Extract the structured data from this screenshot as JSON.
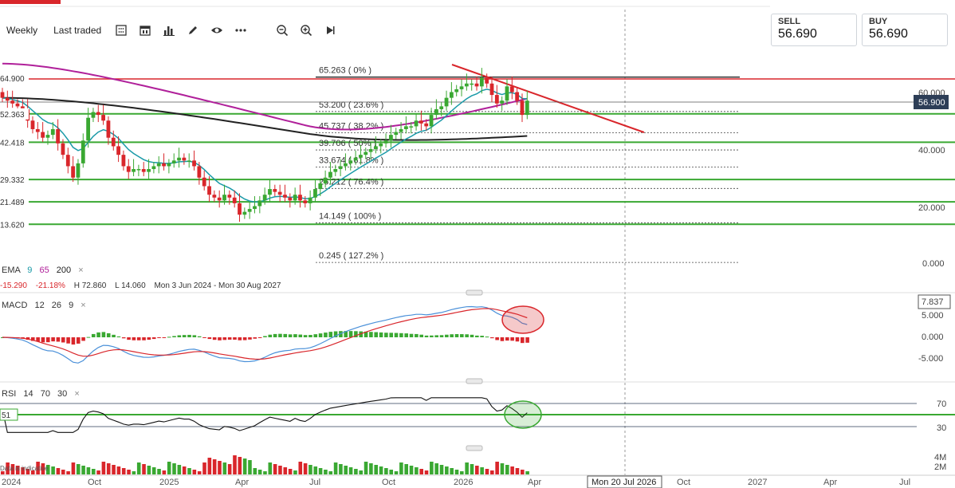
{
  "toolbar": {
    "interval": "Weekly",
    "price_mode": "Last traded",
    "icons": [
      "calculator-icon",
      "calendar-icon",
      "bar-chart-icon",
      "pencil-icon",
      "eye-icon",
      "more-icon",
      "zoom-out-icon",
      "zoom-in-icon",
      "play-icon"
    ]
  },
  "prices": {
    "sell_label": "SELL",
    "sell_value": "56.690",
    "buy_label": "BUY",
    "buy_value": "56.690"
  },
  "y_axis": {
    "labels": [
      "60.000",
      "40.000",
      "20.000",
      "0.000"
    ],
    "current": "56.900"
  },
  "left_levels": [
    "64.900",
    "52.363",
    "42.418",
    "29.332",
    "21.489",
    "13.620"
  ],
  "fib_levels": [
    {
      "text": "65.263 ( 0% )"
    },
    {
      "text": "53.200 ( 23.6% )"
    },
    {
      "text": "45.737 ( 38.2% )"
    },
    {
      "text": "39.706 ( 50% )"
    },
    {
      "text": "33.674 ( 61.8% )"
    },
    {
      "text": "26.212 ( 76.4% )"
    },
    {
      "text": "14.149 ( 100% )"
    },
    {
      "text": "0.245 ( 127.2% )"
    }
  ],
  "ema": {
    "name": "EMA",
    "p1": "9",
    "p2": "65",
    "p3": "200",
    "close": "×"
  },
  "stats": {
    "change": "-15.290",
    "pct": "-21.18%",
    "high": "H 72.860",
    "low": "L 14.060",
    "range": "Mon 3 Jun 2024 - Mon 30 Aug 2027"
  },
  "macd": {
    "name": "MACD",
    "p1": "12",
    "p2": "26",
    "p3": "9",
    "close": "×",
    "labels": [
      "7.837",
      "5.000",
      "0.000",
      "-5.000"
    ]
  },
  "rsi": {
    "name": "RSI",
    "p1": "14",
    "p2": "70",
    "p3": "30",
    "close": "×",
    "labels": [
      "70",
      "50",
      "30"
    ],
    "left_value": "51"
  },
  "volume": {
    "labels": [
      "4M",
      "2M"
    ],
    "note": "Data is indicative"
  },
  "x_axis": {
    "labels": [
      "2024",
      "Oct",
      "2025",
      "Apr",
      "Jul",
      "Oct",
      "2026",
      "Apr",
      "Mon 20 Jul 2026",
      "Oct",
      "2027",
      "Apr",
      "Jul"
    ]
  },
  "colors": {
    "up": "#3aa832",
    "down": "#d9262b",
    "ema9": "#1a9aa8",
    "ema65": "#b0209a",
    "ema200": "#222222",
    "level": "#3aa832",
    "accent": "#d9262b"
  },
  "chart_data": {
    "type": "candlestick",
    "interval": "weekly",
    "close": [
      58,
      57,
      56,
      55,
      54,
      50,
      47,
      46,
      44,
      45,
      47,
      42,
      38,
      34,
      30,
      35,
      43,
      51,
      53,
      52,
      50,
      44,
      41,
      38,
      34,
      32,
      33,
      33,
      32,
      33,
      34,
      35,
      34,
      35,
      36,
      37,
      36,
      36,
      34,
      30,
      27,
      24,
      23,
      22,
      24,
      23,
      21,
      17,
      18,
      19,
      20,
      22,
      24,
      26,
      25,
      24,
      23,
      22,
      24,
      22,
      21,
      23,
      26,
      28,
      30,
      32,
      33,
      34,
      35,
      36,
      37,
      38,
      39,
      40,
      41,
      42,
      43,
      45,
      46,
      47,
      48,
      48,
      50,
      49,
      48,
      52,
      54,
      55,
      58,
      60,
      61,
      62,
      63,
      63,
      62,
      65,
      63,
      59,
      56,
      57,
      62,
      60,
      57,
      52,
      57
    ],
    "ylim": [
      0,
      70
    ],
    "fibonacci": [
      65.263,
      53.2,
      45.737,
      39.706,
      33.674,
      26.212,
      14.149,
      0.245
    ],
    "horizontal_levels": [
      64.9,
      52.363,
      42.418,
      29.332,
      21.489,
      13.62
    ]
  }
}
